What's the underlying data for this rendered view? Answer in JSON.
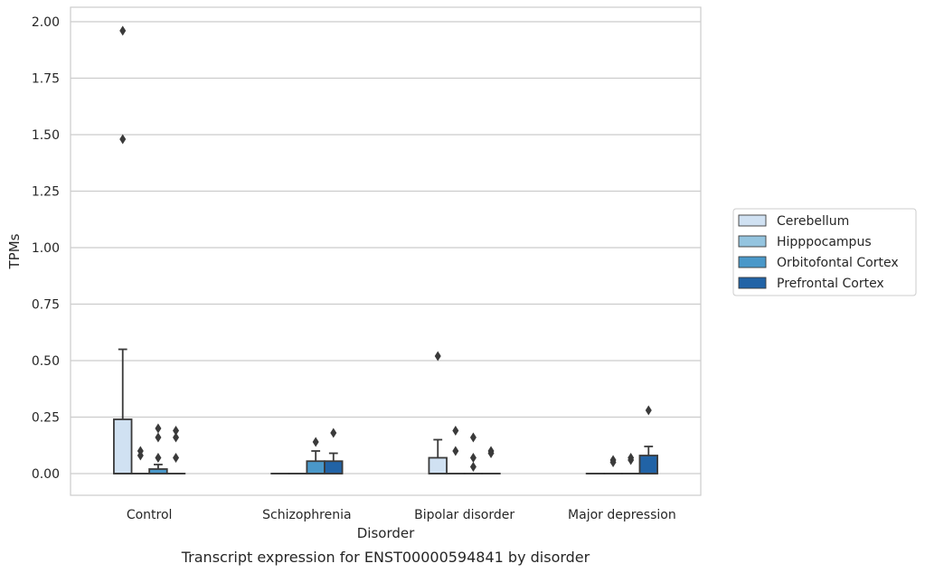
{
  "chart_data": {
    "type": "box",
    "caption": "Transcript expression for ENST00000594841 by disorder",
    "xlabel": "Disorder",
    "ylabel": "TPMs",
    "ylim": [
      -0.1,
      2.05
    ],
    "yticks": [
      "0.00",
      "0.25",
      "0.50",
      "0.75",
      "1.00",
      "1.25",
      "1.50",
      "1.75",
      "2.00"
    ],
    "grid": true,
    "legend_position": "right",
    "categories": [
      "Control",
      "Schizophrenia",
      "Bipolar disorder",
      "Major depression"
    ],
    "series": [
      {
        "name": "Cerebellum",
        "color": "#d0e1f2",
        "boxes": [
          {
            "q1": 0,
            "median": 0,
            "q3": 0.24,
            "whisker_low": 0,
            "whisker_high": 0.55,
            "outliers": [
              1.96,
              1.48
            ]
          },
          {
            "q1": 0,
            "median": 0,
            "q3": 0,
            "whisker_low": 0,
            "whisker_high": 0,
            "outliers": []
          },
          {
            "q1": 0,
            "median": 0,
            "q3": 0.07,
            "whisker_low": 0,
            "whisker_high": 0.15,
            "outliers": [
              0.52
            ]
          },
          {
            "q1": 0,
            "median": 0,
            "q3": 0,
            "whisker_low": 0,
            "whisker_high": 0,
            "outliers": []
          }
        ]
      },
      {
        "name": "Hipppocampus",
        "color": "#94c4df",
        "boxes": [
          {
            "q1": 0,
            "median": 0,
            "q3": 0,
            "whisker_low": 0,
            "whisker_high": 0,
            "outliers": [
              0.1,
              0.08
            ]
          },
          {
            "q1": 0,
            "median": 0,
            "q3": 0,
            "whisker_low": 0,
            "whisker_high": 0,
            "outliers": []
          },
          {
            "q1": 0,
            "median": 0,
            "q3": 0,
            "whisker_low": 0,
            "whisker_high": 0,
            "outliers": [
              0.19,
              0.1
            ]
          },
          {
            "q1": 0,
            "median": 0,
            "q3": 0,
            "whisker_low": 0,
            "whisker_high": 0,
            "outliers": [
              0.06,
              0.05
            ]
          }
        ]
      },
      {
        "name": "Orbitofontal Cortex",
        "color": "#4a98c9",
        "boxes": [
          {
            "q1": 0,
            "median": 0,
            "q3": 0.02,
            "whisker_low": 0,
            "whisker_high": 0.04,
            "outliers": [
              0.2,
              0.16,
              0.07
            ]
          },
          {
            "q1": 0,
            "median": 0,
            "q3": 0.055,
            "whisker_low": 0,
            "whisker_high": 0.1,
            "outliers": [
              0.14
            ]
          },
          {
            "q1": 0,
            "median": 0,
            "q3": 0,
            "whisker_low": 0,
            "whisker_high": 0,
            "outliers": [
              0.16,
              0.07,
              0.03
            ]
          },
          {
            "q1": 0,
            "median": 0,
            "q3": 0,
            "whisker_low": 0,
            "whisker_high": 0,
            "outliers": [
              0.07,
              0.06
            ]
          }
        ]
      },
      {
        "name": "Prefrontal Cortex",
        "color": "#2163a6",
        "boxes": [
          {
            "q1": 0,
            "median": 0,
            "q3": 0,
            "whisker_low": 0,
            "whisker_high": 0,
            "outliers": [
              0.19,
              0.16,
              0.07
            ]
          },
          {
            "q1": 0,
            "median": 0,
            "q3": 0.055,
            "whisker_low": 0,
            "whisker_high": 0.09,
            "outliers": [
              0.18
            ]
          },
          {
            "q1": 0,
            "median": 0,
            "q3": 0,
            "whisker_low": 0,
            "whisker_high": 0,
            "outliers": [
              0.1,
              0.09
            ]
          },
          {
            "q1": 0,
            "median": 0,
            "q3": 0.08,
            "whisker_low": 0,
            "whisker_high": 0.12,
            "outliers": [
              0.28
            ]
          }
        ]
      }
    ]
  }
}
